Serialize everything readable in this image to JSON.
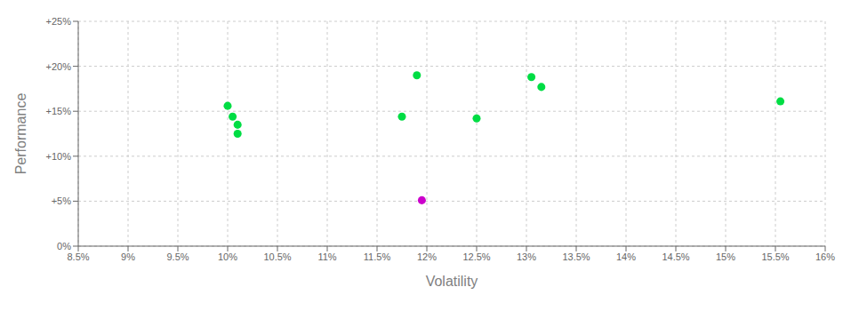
{
  "chart_data": {
    "type": "scatter",
    "x_label": "Volatility",
    "y_label": "Performance",
    "series": [
      {
        "color": "#00dd44",
        "marker": "circle",
        "x": [
          10.0,
          10.05,
          10.1,
          10.1,
          11.75,
          11.9,
          12.5,
          13.05,
          13.15,
          15.55
        ],
        "values": [
          15.6,
          14.4,
          13.5,
          12.5,
          14.4,
          19.0,
          14.2,
          18.8,
          17.7,
          16.1
        ]
      },
      {
        "color": "#cc00cc",
        "marker": "circle",
        "x": [
          11.95
        ],
        "values": [
          5.1
        ]
      }
    ],
    "xlim": [
      8.5,
      16.0
    ],
    "ylim": [
      0,
      25
    ],
    "xticks": [
      {
        "value": 8.5,
        "label": "8.5%"
      },
      {
        "value": 9.0,
        "label": "9%"
      },
      {
        "value": 9.5,
        "label": "9.5%"
      },
      {
        "value": 10.0,
        "label": "10%"
      },
      {
        "value": 10.5,
        "label": "10.5%"
      },
      {
        "value": 11.0,
        "label": "11%"
      },
      {
        "value": 11.5,
        "label": "11.5%"
      },
      {
        "value": 12.0,
        "label": "12%"
      },
      {
        "value": 12.5,
        "label": "12.5%"
      },
      {
        "value": 13.0,
        "label": "13%"
      },
      {
        "value": 13.5,
        "label": "13.5%"
      },
      {
        "value": 14.0,
        "label": "14%"
      },
      {
        "value": 14.5,
        "label": "14.5%"
      },
      {
        "value": 15.0,
        "label": "15%"
      },
      {
        "value": 15.5,
        "label": "15.5%"
      },
      {
        "value": 16.0,
        "label": "16%"
      }
    ],
    "yticks": [
      {
        "value": 0,
        "label": "0%"
      },
      {
        "value": 5,
        "label": "+5%"
      },
      {
        "value": 10,
        "label": "+10%"
      },
      {
        "value": 15,
        "label": "+15%"
      },
      {
        "value": 20,
        "label": "+20%"
      },
      {
        "value": 25,
        "label": "+25%"
      }
    ],
    "grid": true
  }
}
